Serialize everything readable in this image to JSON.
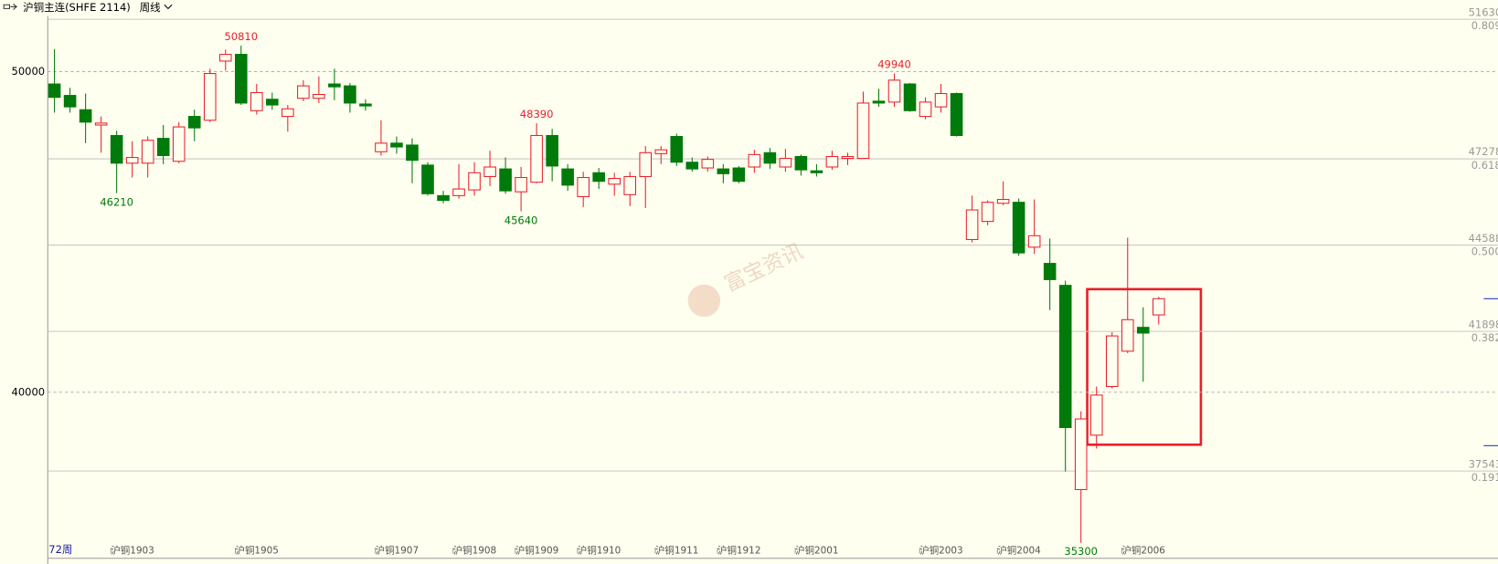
{
  "chart_data": {
    "type": "candlestick",
    "title": "沪铜主连(SHFE 2114)",
    "period": "周线",
    "count_label": "72周",
    "watermark": "富宝资讯",
    "ylim": [
      34822,
      51726
    ],
    "yticks": [
      50000,
      40000
    ],
    "fib_levels": [
      {
        "value": 51630,
        "ratio": "0.809"
      },
      {
        "value": 47278,
        "ratio": "0.618"
      },
      {
        "value": 44588,
        "ratio": "0.500"
      },
      {
        "value": 41898,
        "ratio": "0.382"
      },
      {
        "value": 37543,
        "ratio": "0.191"
      }
    ],
    "up_color": "#e8202a",
    "down_color": "#007a0a",
    "categories": [
      null,
      null,
      null,
      null,
      "沪铜1903",
      null,
      null,
      null,
      null,
      null,
      null,
      null,
      "沪铜1905",
      null,
      null,
      null,
      null,
      null,
      null,
      null,
      null,
      "沪铜1907",
      null,
      null,
      null,
      null,
      "沪铜1908",
      null,
      null,
      null,
      "沪铜1909",
      null,
      null,
      null,
      "沪铜1910",
      null,
      null,
      null,
      null,
      "沪铜1911",
      null,
      null,
      null,
      "沪铜1912",
      null,
      null,
      null,
      null,
      "沪铜2001",
      null,
      null,
      null,
      null,
      null,
      null,
      null,
      "沪铜2003",
      null,
      null,
      null,
      null,
      "沪铜2004",
      null,
      null,
      null,
      null,
      null,
      null,
      null,
      "沪铜2006",
      null,
      null
    ],
    "ohlc": [
      [
        49613,
        50700,
        48720,
        49196
      ],
      [
        49256,
        49494,
        48720,
        48899
      ],
      [
        48810,
        49315,
        47768,
        48423
      ],
      [
        48333,
        48601,
        47470,
        48393
      ],
      [
        48006,
        48155,
        46210,
        47143
      ],
      [
        47143,
        47827,
        46697,
        47321
      ],
      [
        47143,
        47976,
        46697,
        47857
      ],
      [
        47917,
        48333,
        47113,
        47381
      ],
      [
        47202,
        48423,
        47143,
        48274
      ],
      [
        48601,
        48810,
        47827,
        48244
      ],
      [
        48482,
        50089,
        48423,
        49940
      ],
      [
        50327,
        50684,
        50030,
        50536
      ],
      [
        50536,
        50810,
        48958,
        49018
      ],
      [
        48780,
        49613,
        48661,
        49345
      ],
      [
        49137,
        49345,
        48810,
        48958
      ],
      [
        48601,
        48958,
        48125,
        48839
      ],
      [
        49167,
        49732,
        49077,
        49554
      ],
      [
        49167,
        49851,
        49018,
        49286
      ],
      [
        49613,
        50089,
        49107,
        49524
      ],
      [
        49554,
        49643,
        48720,
        49018
      ],
      [
        48988,
        49137,
        48780,
        48929
      ],
      [
        47500,
        48482,
        47381,
        47768
      ],
      [
        47768,
        47976,
        47440,
        47649
      ],
      [
        47708,
        47917,
        46518,
        47232
      ],
      [
        47083,
        47173,
        46131,
        46190
      ],
      [
        46131,
        46280,
        45893,
        45982
      ],
      [
        46131,
        47113,
        46042,
        46339
      ],
      [
        46310,
        47173,
        46131,
        46845
      ],
      [
        46726,
        47530,
        46429,
        47024
      ],
      [
        46964,
        47321,
        46190,
        46280
      ],
      [
        46250,
        47024,
        45640,
        46696
      ],
      [
        46548,
        48390,
        46518,
        48006
      ],
      [
        48006,
        48214,
        46577,
        47054
      ],
      [
        46964,
        47113,
        46280,
        46458
      ],
      [
        46101,
        46875,
        45774,
        46696
      ],
      [
        46845,
        46994,
        46339,
        46577
      ],
      [
        46488,
        46845,
        46131,
        46667
      ],
      [
        46161,
        46875,
        45804,
        46726
      ],
      [
        46726,
        47679,
        45744,
        47470
      ],
      [
        47440,
        47679,
        47113,
        47560
      ],
      [
        47976,
        48065,
        47054,
        47173
      ],
      [
        47173,
        47321,
        46875,
        46964
      ],
      [
        46994,
        47351,
        46875,
        47262
      ],
      [
        46964,
        47113,
        46518,
        46815
      ],
      [
        46994,
        47054,
        46518,
        46577
      ],
      [
        47024,
        47560,
        46845,
        47411
      ],
      [
        47470,
        47619,
        46964,
        47143
      ],
      [
        47024,
        47589,
        46875,
        47292
      ],
      [
        47351,
        47411,
        46756,
        46935
      ],
      [
        46905,
        47113,
        46726,
        46845
      ],
      [
        47024,
        47530,
        46935,
        47351
      ],
      [
        47292,
        47470,
        47083,
        47351
      ],
      [
        47292,
        49375,
        47292,
        49018
      ],
      [
        49077,
        49464,
        48899,
        49018
      ],
      [
        49048,
        49940,
        48899,
        49732
      ],
      [
        49613,
        49643,
        48750,
        48780
      ],
      [
        48601,
        49196,
        48512,
        49048
      ],
      [
        48899,
        49613,
        48720,
        49315
      ],
      [
        49315,
        49345,
        47976,
        48006
      ],
      [
        44762,
        46131,
        44673,
        45685
      ],
      [
        45327,
        45982,
        45208,
        45923
      ],
      [
        45893,
        46577,
        45833,
        46012
      ],
      [
        45923,
        46042,
        44256,
        44345
      ],
      [
        44524,
        46012,
        44316,
        44881
      ],
      [
        44018,
        44792,
        42560,
        43512
      ],
      [
        43333,
        43482,
        37530,
        38899
      ],
      [
        36964,
        39405,
        35300,
        39167
      ],
      [
        38661,
        40179,
        38244,
        39911
      ],
      [
        40179,
        41875,
        40119,
        41756
      ],
      [
        41280,
        44821,
        41220,
        42262
      ],
      [
        42024,
        42649,
        40327,
        41845
      ],
      [
        42411,
        42976,
        42113,
        42917
      ]
    ]
  }
}
